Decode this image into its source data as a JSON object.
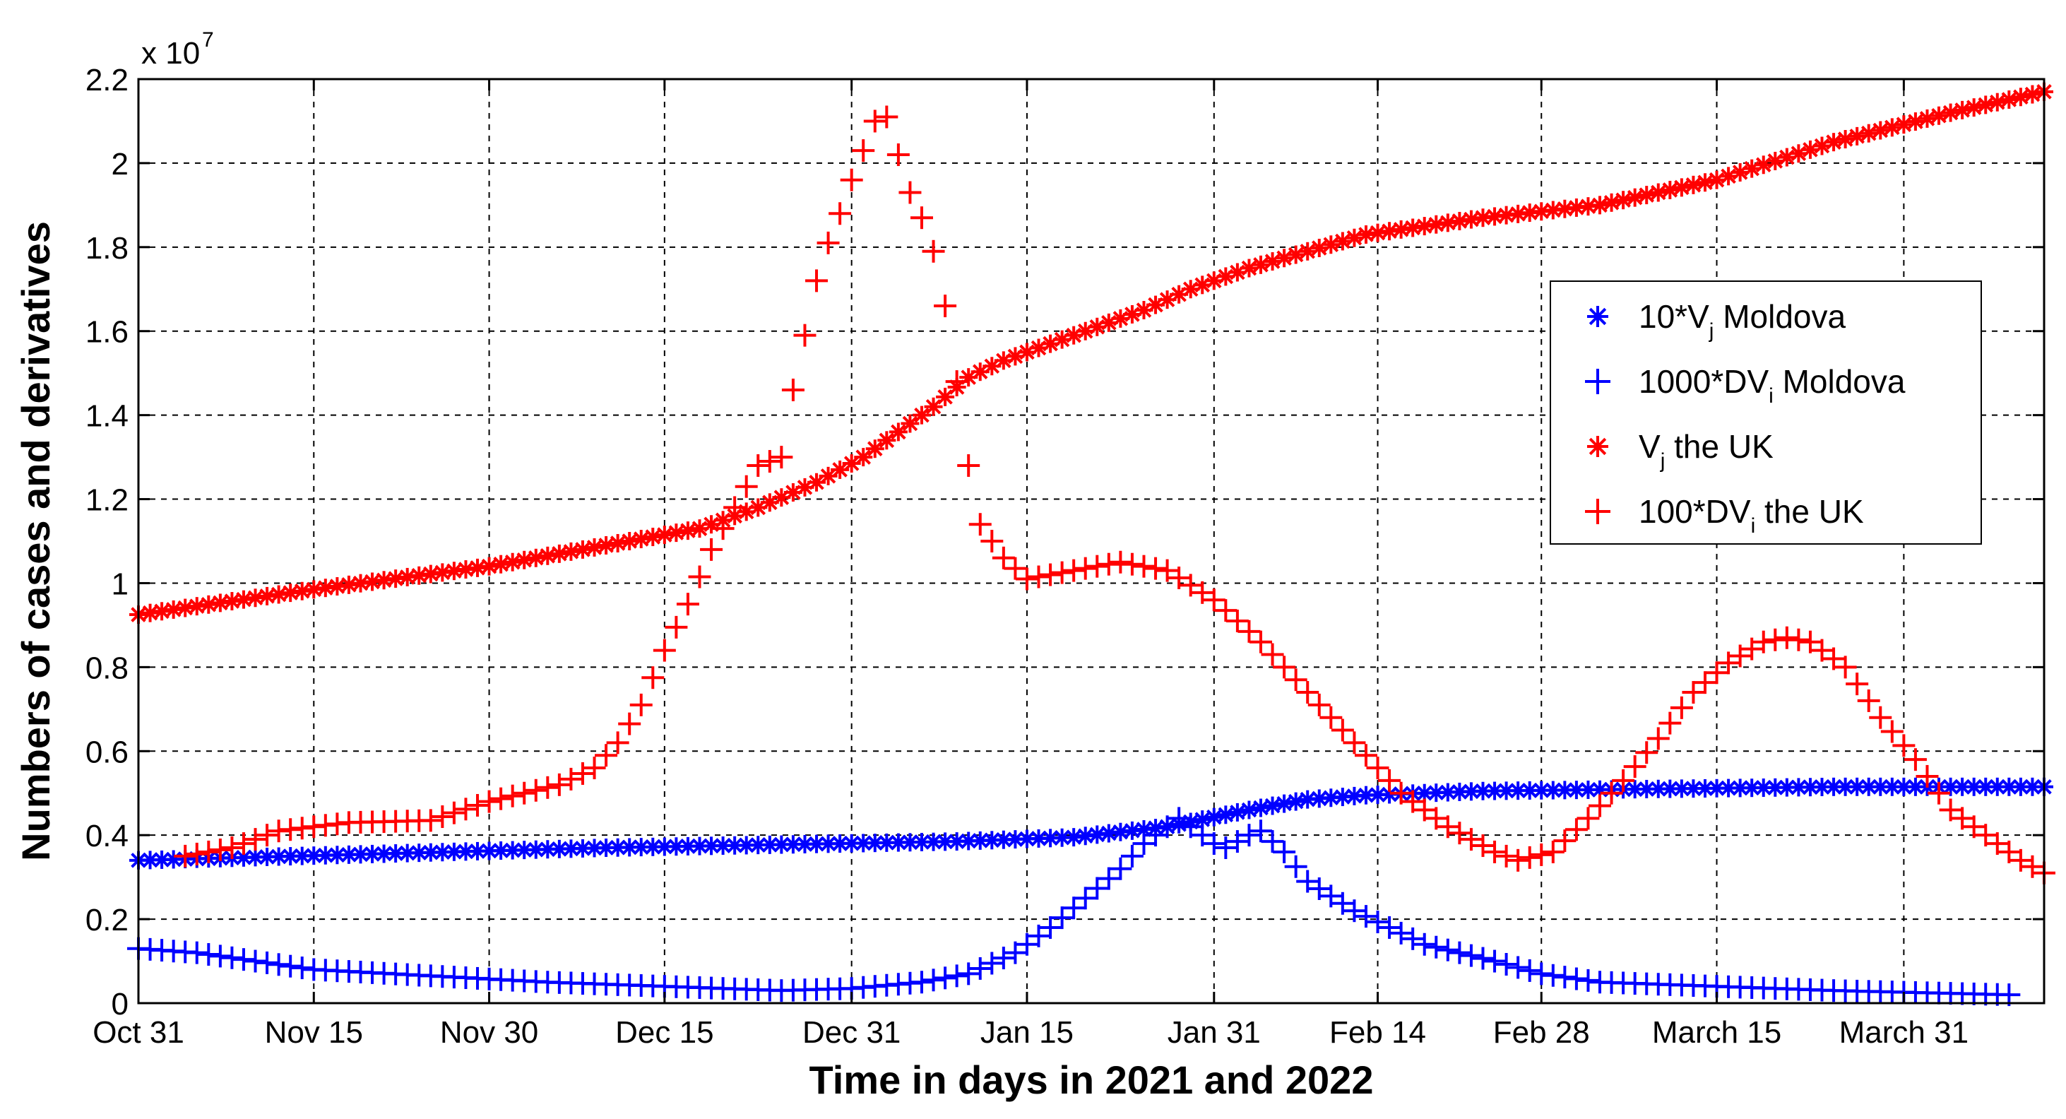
{
  "chart_data": {
    "type": "scatter",
    "title": "",
    "xlabel": "Time in days in 2021 and 2022",
    "ylabel": "Numbers of cases and derivatives",
    "y_scale_label": "x 10",
    "y_scale_exponent": "7",
    "x_day_range": [
      0,
      163
    ],
    "x_ticks": [
      {
        "day": 0,
        "label": "Oct 31"
      },
      {
        "day": 15,
        "label": "Nov 15"
      },
      {
        "day": 30,
        "label": "Nov 30"
      },
      {
        "day": 45,
        "label": "Dec 15"
      },
      {
        "day": 61,
        "label": "Dec 31"
      },
      {
        "day": 76,
        "label": "Jan 15"
      },
      {
        "day": 92,
        "label": "Jan 31"
      },
      {
        "day": 106,
        "label": "Feb 14"
      },
      {
        "day": 120,
        "label": "Feb 28"
      },
      {
        "day": 135,
        "label": "March 15"
      },
      {
        "day": 151,
        "label": "March 31"
      }
    ],
    "ylim": [
      0,
      2.2
    ],
    "y_ticks": [
      "0",
      "0.2",
      "0.4",
      "0.6",
      "0.8",
      "1",
      "1.2",
      "1.4",
      "1.6",
      "1.8",
      "2",
      "2.2"
    ],
    "grid": true,
    "legend_position": "right",
    "series": [
      {
        "name": "10*V",
        "name_sub": "j",
        "name_suffix": " Moldova",
        "color": "#0000ff",
        "marker": "asterisk",
        "points": [
          [
            0,
            0.34
          ],
          [
            20,
            0.355
          ],
          [
            40,
            0.37
          ],
          [
            60,
            0.38
          ],
          [
            70,
            0.385
          ],
          [
            80,
            0.395
          ],
          [
            88,
            0.42
          ],
          [
            95,
            0.46
          ],
          [
            100,
            0.485
          ],
          [
            105,
            0.495
          ],
          [
            115,
            0.505
          ],
          [
            130,
            0.51
          ],
          [
            145,
            0.515
          ],
          [
            163,
            0.515
          ]
        ]
      },
      {
        "name": "1000*DV",
        "name_sub": "i",
        "name_suffix": " Moldova",
        "color": "#0000ff",
        "marker": "plus",
        "points": [
          [
            0,
            0.13
          ],
          [
            5,
            0.12
          ],
          [
            15,
            0.08
          ],
          [
            25,
            0.065
          ],
          [
            35,
            0.05
          ],
          [
            45,
            0.04
          ],
          [
            55,
            0.03
          ],
          [
            61,
            0.035
          ],
          [
            67,
            0.05
          ],
          [
            71,
            0.07
          ],
          [
            75,
            0.12
          ],
          [
            78,
            0.18
          ],
          [
            81,
            0.25
          ],
          [
            84,
            0.32
          ],
          [
            86,
            0.38
          ],
          [
            88,
            0.42
          ],
          [
            89,
            0.44
          ],
          [
            90,
            0.42
          ],
          [
            92,
            0.38
          ],
          [
            93,
            0.37
          ],
          [
            95,
            0.4
          ],
          [
            96,
            0.41
          ],
          [
            98,
            0.36
          ],
          [
            100,
            0.29
          ],
          [
            104,
            0.22
          ],
          [
            110,
            0.14
          ],
          [
            116,
            0.1
          ],
          [
            120,
            0.07
          ],
          [
            125,
            0.05
          ],
          [
            135,
            0.04
          ],
          [
            145,
            0.03
          ],
          [
            160,
            0.02
          ]
        ]
      },
      {
        "name": "V",
        "name_sub": "j",
        "name_suffix": " the UK",
        "color": "#ff0000",
        "marker": "asterisk",
        "points": [
          [
            0,
            0.925
          ],
          [
            15,
            0.985
          ],
          [
            30,
            1.04
          ],
          [
            40,
            1.09
          ],
          [
            48,
            1.13
          ],
          [
            53,
            1.18
          ],
          [
            58,
            1.24
          ],
          [
            62,
            1.3
          ],
          [
            65,
            1.36
          ],
          [
            68,
            1.42
          ],
          [
            71,
            1.49
          ],
          [
            74,
            1.53
          ],
          [
            78,
            1.57
          ],
          [
            82,
            1.61
          ],
          [
            86,
            1.65
          ],
          [
            90,
            1.7
          ],
          [
            95,
            1.75
          ],
          [
            100,
            1.79
          ],
          [
            105,
            1.83
          ],
          [
            115,
            1.87
          ],
          [
            125,
            1.9
          ],
          [
            135,
            1.96
          ],
          [
            145,
            2.05
          ],
          [
            155,
            2.12
          ],
          [
            163,
            2.17
          ]
        ]
      },
      {
        "name": "100*DV",
        "name_sub": "i",
        "name_suffix": " the UK",
        "color": "#ff0000",
        "marker": "plus",
        "points": [
          [
            4,
            0.35
          ],
          [
            8,
            0.37
          ],
          [
            12,
            0.41
          ],
          [
            18,
            0.43
          ],
          [
            25,
            0.435
          ],
          [
            30,
            0.48
          ],
          [
            36,
            0.52
          ],
          [
            39,
            0.56
          ],
          [
            41,
            0.62
          ],
          [
            43,
            0.71
          ],
          [
            45,
            0.84
          ],
          [
            47,
            0.95
          ],
          [
            49,
            1.08
          ],
          [
            51,
            1.18
          ],
          [
            53,
            1.28
          ],
          [
            55,
            1.3
          ],
          [
            56,
            1.46
          ],
          [
            57,
            1.59
          ],
          [
            58,
            1.72
          ],
          [
            59,
            1.81
          ],
          [
            60,
            1.88
          ],
          [
            61,
            1.96
          ],
          [
            62,
            2.03
          ],
          [
            63,
            2.1
          ],
          [
            64,
            2.11
          ],
          [
            65,
            2.02
          ],
          [
            66,
            1.93
          ],
          [
            67,
            1.87
          ],
          [
            68,
            1.79
          ],
          [
            69,
            1.66
          ],
          [
            70,
            1.48
          ],
          [
            71,
            1.28
          ],
          [
            72,
            1.14
          ],
          [
            74,
            1.06
          ],
          [
            76,
            1.01
          ],
          [
            80,
            1.03
          ],
          [
            84,
            1.05
          ],
          [
            88,
            1.03
          ],
          [
            92,
            0.96
          ],
          [
            96,
            0.86
          ],
          [
            100,
            0.74
          ],
          [
            104,
            0.62
          ],
          [
            108,
            0.5
          ],
          [
            112,
            0.42
          ],
          [
            116,
            0.36
          ],
          [
            118,
            0.34
          ],
          [
            121,
            0.36
          ],
          [
            124,
            0.44
          ],
          [
            127,
            0.53
          ],
          [
            130,
            0.63
          ],
          [
            133,
            0.74
          ],
          [
            136,
            0.81
          ],
          [
            139,
            0.86
          ],
          [
            141,
            0.87
          ],
          [
            143,
            0.86
          ],
          [
            146,
            0.8
          ],
          [
            149,
            0.68
          ],
          [
            152,
            0.58
          ],
          [
            155,
            0.46
          ],
          [
            158,
            0.4
          ],
          [
            161,
            0.34
          ],
          [
            163,
            0.31
          ]
        ]
      }
    ]
  }
}
